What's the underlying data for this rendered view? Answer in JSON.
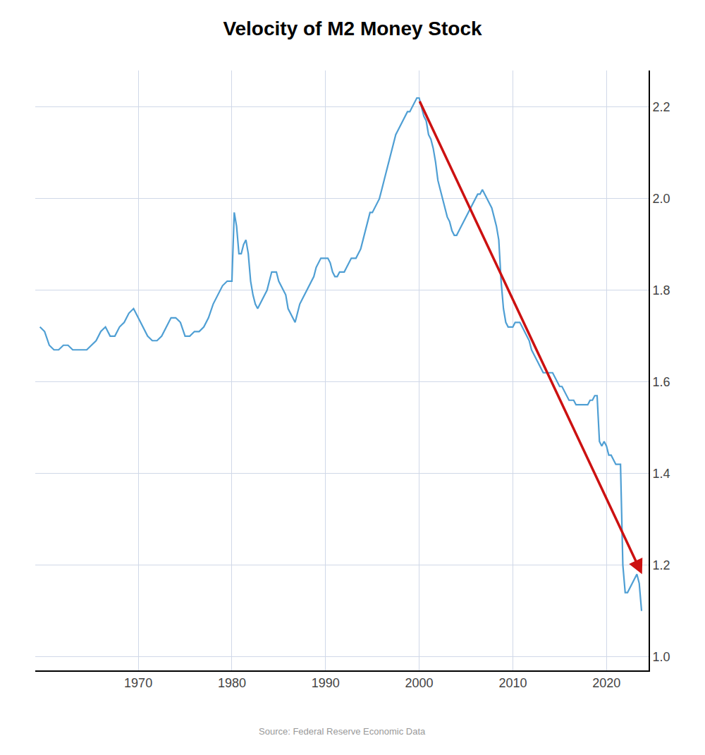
{
  "chart_data": {
    "type": "line",
    "title": "Velocity of M2 Money Stock",
    "source": "Source: Federal Reserve Economic Data",
    "color": "#4f9fd4",
    "grid": true,
    "xlim": [
      1959.0,
      2024.5
    ],
    "ylim": [
      0.97,
      2.28
    ],
    "xticks": [
      1970,
      1980,
      1990,
      2000,
      2010,
      2020
    ],
    "yticks": [
      {
        "value": 1.0,
        "label": "1.0"
      },
      1.2,
      1.4,
      1.6,
      1.8,
      {
        "value": 2.0,
        "label": "2.0"
      },
      2.2
    ],
    "arrow": {
      "start": [
        2000.0,
        2.215
      ],
      "end": [
        2023.8,
        1.18
      ],
      "color": "#cc1111"
    },
    "x": [
      1959.5,
      1960.0,
      1960.5,
      1961.0,
      1961.5,
      1962.0,
      1962.5,
      1963.0,
      1963.5,
      1964.0,
      1964.5,
      1965.0,
      1965.5,
      1966.0,
      1966.5,
      1967.0,
      1967.5,
      1968.0,
      1968.5,
      1969.0,
      1969.5,
      1970.0,
      1970.5,
      1971.0,
      1971.5,
      1972.0,
      1972.5,
      1973.0,
      1973.5,
      1974.0,
      1974.5,
      1975.0,
      1975.5,
      1976.0,
      1976.5,
      1977.0,
      1977.5,
      1978.0,
      1978.5,
      1979.0,
      1979.5,
      1980.0,
      1980.25,
      1980.5,
      1980.75,
      1981.0,
      1981.25,
      1981.5,
      1981.75,
      1982.0,
      1982.25,
      1982.5,
      1982.75,
      1983.0,
      1983.25,
      1983.5,
      1983.75,
      1984.0,
      1984.25,
      1984.5,
      1984.75,
      1985.0,
      1985.25,
      1985.5,
      1985.75,
      1986.0,
      1986.25,
      1986.5,
      1986.75,
      1987.0,
      1987.25,
      1987.5,
      1987.75,
      1988.0,
      1988.25,
      1988.5,
      1988.75,
      1989.0,
      1989.25,
      1989.5,
      1989.75,
      1990.0,
      1990.25,
      1990.5,
      1990.75,
      1991.0,
      1991.25,
      1991.5,
      1991.75,
      1992.0,
      1992.25,
      1992.5,
      1992.75,
      1993.0,
      1993.25,
      1993.5,
      1993.75,
      1994.0,
      1994.25,
      1994.5,
      1994.75,
      1995.0,
      1995.25,
      1995.5,
      1995.75,
      1996.0,
      1996.25,
      1996.5,
      1996.75,
      1997.0,
      1997.25,
      1997.5,
      1997.75,
      1998.0,
      1998.25,
      1998.5,
      1998.75,
      1999.0,
      1999.25,
      1999.5,
      1999.75,
      2000.0,
      2000.25,
      2000.5,
      2000.75,
      2001.0,
      2001.25,
      2001.5,
      2001.75,
      2002.0,
      2002.25,
      2002.5,
      2002.75,
      2003.0,
      2003.25,
      2003.5,
      2003.75,
      2004.0,
      2004.25,
      2004.5,
      2004.75,
      2005.0,
      2005.25,
      2005.5,
      2005.75,
      2006.0,
      2006.25,
      2006.5,
      2006.75,
      2007.0,
      2007.25,
      2007.5,
      2007.75,
      2008.0,
      2008.25,
      2008.5,
      2008.75,
      2009.0,
      2009.25,
      2009.5,
      2009.75,
      2010.0,
      2010.25,
      2010.5,
      2010.75,
      2011.0,
      2011.25,
      2011.5,
      2011.75,
      2012.0,
      2012.25,
      2012.5,
      2012.75,
      2013.0,
      2013.25,
      2013.5,
      2013.75,
      2014.0,
      2014.25,
      2014.5,
      2014.75,
      2015.0,
      2015.25,
      2015.5,
      2015.75,
      2016.0,
      2016.25,
      2016.5,
      2016.75,
      2017.0,
      2017.25,
      2017.5,
      2017.75,
      2018.0,
      2018.25,
      2018.5,
      2018.75,
      2019.0,
      2019.25,
      2019.5,
      2019.75,
      2020.0,
      2020.25,
      2020.5,
      2020.75,
      2021.0,
      2021.25,
      2021.5,
      2021.75,
      2022.0,
      2022.25,
      2022.5,
      2022.75,
      2023.0,
      2023.25,
      2023.5,
      2023.75
    ],
    "values": [
      1.72,
      1.71,
      1.68,
      1.67,
      1.67,
      1.68,
      1.68,
      1.67,
      1.67,
      1.67,
      1.67,
      1.68,
      1.69,
      1.71,
      1.72,
      1.7,
      1.7,
      1.72,
      1.73,
      1.75,
      1.76,
      1.74,
      1.72,
      1.7,
      1.69,
      1.69,
      1.7,
      1.72,
      1.74,
      1.74,
      1.73,
      1.7,
      1.7,
      1.71,
      1.71,
      1.72,
      1.74,
      1.77,
      1.79,
      1.81,
      1.82,
      1.82,
      1.97,
      1.94,
      1.88,
      1.88,
      1.9,
      1.91,
      1.88,
      1.82,
      1.79,
      1.77,
      1.76,
      1.77,
      1.78,
      1.79,
      1.8,
      1.82,
      1.84,
      1.84,
      1.84,
      1.82,
      1.81,
      1.8,
      1.79,
      1.76,
      1.75,
      1.74,
      1.73,
      1.75,
      1.77,
      1.78,
      1.79,
      1.8,
      1.81,
      1.82,
      1.83,
      1.85,
      1.86,
      1.87,
      1.87,
      1.87,
      1.87,
      1.86,
      1.84,
      1.83,
      1.83,
      1.84,
      1.84,
      1.84,
      1.85,
      1.86,
      1.87,
      1.87,
      1.87,
      1.88,
      1.89,
      1.91,
      1.93,
      1.95,
      1.97,
      1.97,
      1.98,
      1.99,
      2.0,
      2.02,
      2.04,
      2.06,
      2.08,
      2.1,
      2.12,
      2.14,
      2.15,
      2.16,
      2.17,
      2.18,
      2.19,
      2.19,
      2.2,
      2.21,
      2.22,
      2.22,
      2.2,
      2.18,
      2.17,
      2.14,
      2.13,
      2.11,
      2.08,
      2.04,
      2.02,
      2.0,
      1.98,
      1.96,
      1.95,
      1.93,
      1.92,
      1.92,
      1.93,
      1.94,
      1.95,
      1.96,
      1.97,
      1.98,
      1.99,
      2.0,
      2.01,
      2.01,
      2.02,
      2.01,
      2.0,
      1.99,
      1.98,
      1.96,
      1.94,
      1.91,
      1.82,
      1.76,
      1.73,
      1.72,
      1.72,
      1.72,
      1.73,
      1.73,
      1.73,
      1.72,
      1.71,
      1.7,
      1.69,
      1.67,
      1.66,
      1.65,
      1.64,
      1.63,
      1.62,
      1.62,
      1.62,
      1.62,
      1.62,
      1.61,
      1.6,
      1.59,
      1.59,
      1.58,
      1.57,
      1.56,
      1.56,
      1.56,
      1.55,
      1.55,
      1.55,
      1.55,
      1.55,
      1.55,
      1.56,
      1.56,
      1.57,
      1.57,
      1.47,
      1.46,
      1.47,
      1.46,
      1.44,
      1.44,
      1.43,
      1.42,
      1.42,
      1.42,
      1.2,
      1.14,
      1.14,
      1.15,
      1.16,
      1.17,
      1.18,
      1.16,
      1.1
    ]
  }
}
